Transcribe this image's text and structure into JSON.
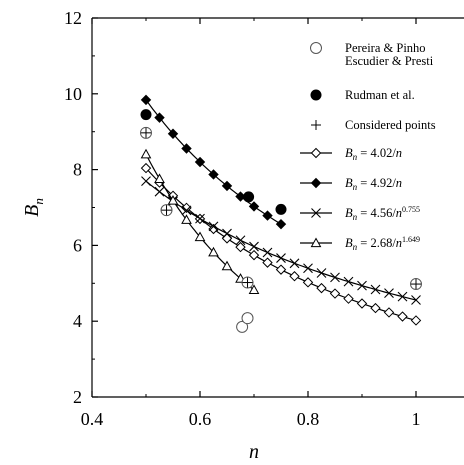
{
  "chart_data": {
    "type": "scatter",
    "xlabel": "n",
    "ylabel": "Bn",
    "xlim": [
      0.4,
      1.0
    ],
    "ylim": [
      2,
      12
    ],
    "x_ticks": [
      0.4,
      0.6,
      0.8,
      1.0
    ],
    "x_tick_labels": [
      "0.4",
      "0.6",
      "0.8",
      "1"
    ],
    "y_ticks": [
      2,
      4,
      6,
      8,
      10,
      12
    ],
    "y_tick_labels": [
      "2",
      "4",
      "6",
      "8",
      "10",
      "12"
    ],
    "grid": false,
    "legend_position": "top-right",
    "series": [
      {
        "name": "Pereira & Pinho",
        "kind": "scatter",
        "marker": "open-circle",
        "x": [
          0.5,
          0.538,
          0.678,
          0.688
        ],
        "y": [
          8.97,
          6.93,
          3.85,
          4.08
        ]
      },
      {
        "name": "Escudier & Presti",
        "kind": "scatter",
        "marker": "open-circle",
        "x": [
          0.688,
          1.0
        ],
        "y": [
          5.02,
          4.98
        ]
      },
      {
        "name": "Rudman et al.",
        "kind": "scatter",
        "marker": "filled-circle",
        "x": [
          0.5,
          0.69,
          0.75
        ],
        "y": [
          9.45,
          7.28,
          6.95
        ]
      },
      {
        "name": "Considered points",
        "kind": "scatter",
        "marker": "plus",
        "x": [
          0.5,
          0.538,
          0.688,
          1.0
        ],
        "y": [
          8.97,
          6.93,
          5.02,
          4.98
        ]
      },
      {
        "name": "B",
        "legend_sub": "n",
        "legend_eq": " = 4.02/",
        "legend_var": "n",
        "legend_exp": "",
        "kind": "line",
        "marker": "open-diamond",
        "coef": 4.02,
        "exponent": 1.0,
        "x_range": [
          0.5,
          1.0
        ]
      },
      {
        "name": "B",
        "legend_sub": "n",
        "legend_eq": " = 4.92/",
        "legend_var": "n",
        "legend_exp": "",
        "kind": "line",
        "marker": "filled-diamond",
        "coef": 4.92,
        "exponent": 1.0,
        "x_range": [
          0.5,
          0.75
        ]
      },
      {
        "name": "B",
        "legend_sub": "n",
        "legend_eq": " = 4.56/",
        "legend_var": "n",
        "legend_exp": "0.755",
        "kind": "line",
        "marker": "x",
        "coef": 4.56,
        "exponent": 0.755,
        "x_range": [
          0.5,
          1.0
        ]
      },
      {
        "name": "B",
        "legend_sub": "n",
        "legend_eq": " = 2.68/",
        "legend_var": "n",
        "legend_exp": "1.649",
        "kind": "line",
        "marker": "open-triangle",
        "coef": 2.68,
        "exponent": 1.649,
        "x_range": [
          0.5,
          0.7
        ]
      }
    ]
  }
}
